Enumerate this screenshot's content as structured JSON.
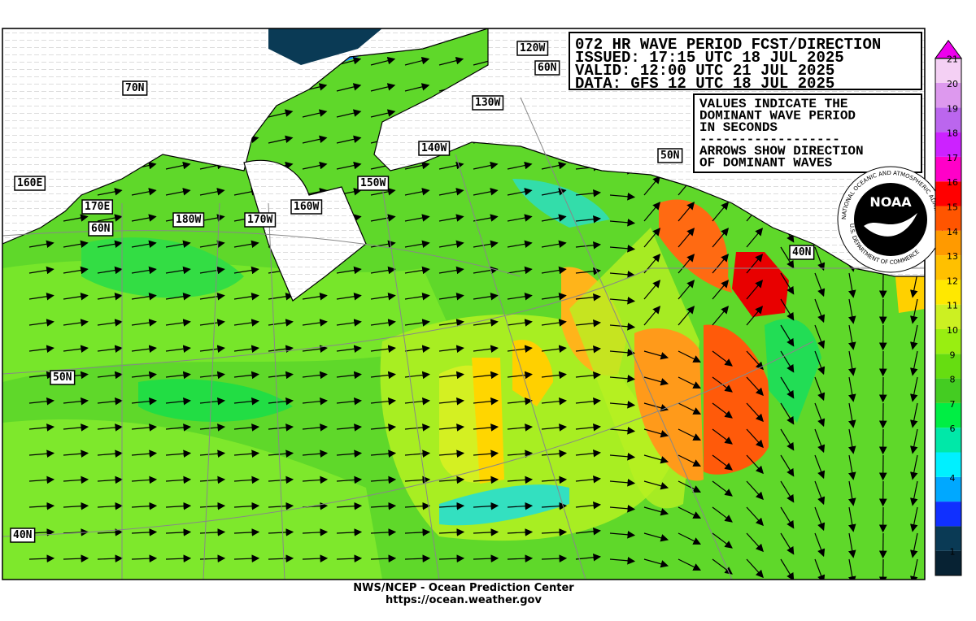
{
  "header": {
    "lines": [
      "072 HR WAVE PERIOD FCST/DIRECTION",
      "ISSUED: 17:15 UTC 18 JUL 2025",
      "VALID:  12:00 UTC 21 JUL 2025",
      "DATA:  GFS 12 UTC 18 JUL 2025"
    ]
  },
  "note": {
    "lines": [
      "VALUES INDICATE THE",
      "DOMINANT WAVE PERIOD",
      "IN SECONDS",
      "------------------",
      "ARROWS SHOW DIRECTION",
      "OF DOMINANT WAVES"
    ]
  },
  "grid_labels": [
    "120W",
    "60N",
    "70N",
    "130W",
    "140W",
    "50N",
    "160E",
    "150W",
    "170E",
    "160W",
    "60N",
    "180W",
    "170W",
    "40N",
    "50N",
    "40N"
  ],
  "logo": {
    "name": "NOAA",
    "ring_top": "NATIONAL OCEANIC AND ATMOSPHERIC ADMINISTRATION",
    "ring_bottom": "U.S. DEPARTMENT OF COMMERCE"
  },
  "colorbar": {
    "colors": [
      "#072233",
      "#0a3a55",
      "#1030ff",
      "#00a8ff",
      "#00f0ff",
      "#00e8a8",
      "#00ee44",
      "#44cc22",
      "#66dd11",
      "#99ee11",
      "#ccf022",
      "#ffe800",
      "#ffc000",
      "#ff9a00",
      "#ff5500",
      "#ff0000",
      "#ff00c8",
      "#cc22ff",
      "#bb66ee",
      "#dd99ee",
      "#f4d0f4"
    ],
    "top_color": "#ee00ee",
    "labels": [
      1,
      4,
      6,
      7,
      8,
      9,
      10,
      11,
      12,
      13,
      14,
      15,
      16,
      17,
      18,
      19,
      20,
      21
    ]
  },
  "footer": {
    "lines": [
      "NWS/NCEP - Ocean Prediction Center",
      "https://ocean.weather.gov"
    ]
  }
}
